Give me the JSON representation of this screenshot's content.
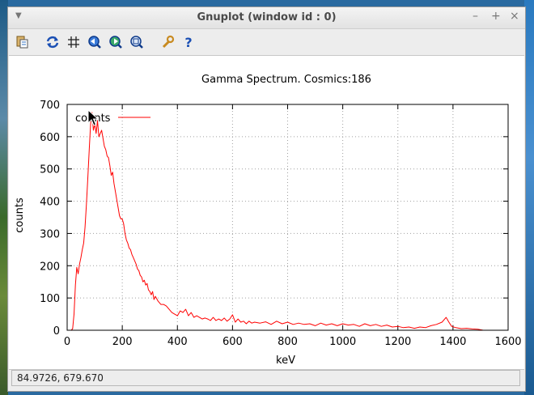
{
  "window": {
    "title": "Gnuplot (window id : 0)"
  },
  "toolbar": {
    "icons": [
      "copy-clipboard-icon",
      "replot-icon",
      "grid-icon",
      "zoom-previous-icon",
      "zoom-next-icon",
      "autoscale-icon",
      "options-icon",
      "help-icon"
    ]
  },
  "status": {
    "coords": "84.9726,  679.670"
  },
  "colors": {
    "series": "#ff0000",
    "grid": "#a0a0a0",
    "accent_blue": "#1a4fb4"
  },
  "chart_data": {
    "type": "line",
    "title": "Gamma Spectrum.  Cosmics:186",
    "xlabel": "keV",
    "ylabel": "counts",
    "xlim": [
      0,
      1600
    ],
    "ylim": [
      0,
      700
    ],
    "xticks": [
      "0",
      "200",
      "400",
      "600",
      "800",
      "1000",
      "1200",
      "1400",
      "1600"
    ],
    "yticks": [
      "0",
      "100",
      "200",
      "300",
      "400",
      "500",
      "600",
      "700"
    ],
    "grid": true,
    "legend_position": "top-left",
    "series": [
      {
        "name": "counts",
        "color": "#ff0000",
        "points": [
          [
            15,
            0
          ],
          [
            20,
            5
          ],
          [
            25,
            50
          ],
          [
            30,
            140
          ],
          [
            35,
            195
          ],
          [
            40,
            175
          ],
          [
            45,
            205
          ],
          [
            50,
            225
          ],
          [
            55,
            250
          ],
          [
            60,
            270
          ],
          [
            65,
            320
          ],
          [
            70,
            390
          ],
          [
            75,
            470
          ],
          [
            80,
            560
          ],
          [
            85,
            640
          ],
          [
            90,
            675
          ],
          [
            95,
            620
          ],
          [
            100,
            640
          ],
          [
            105,
            610
          ],
          [
            110,
            650
          ],
          [
            115,
            600
          ],
          [
            120,
            610
          ],
          [
            125,
            620
          ],
          [
            130,
            595
          ],
          [
            135,
            570
          ],
          [
            140,
            560
          ],
          [
            145,
            540
          ],
          [
            150,
            535
          ],
          [
            155,
            510
          ],
          [
            160,
            480
          ],
          [
            165,
            490
          ],
          [
            170,
            455
          ],
          [
            175,
            430
          ],
          [
            180,
            405
          ],
          [
            185,
            380
          ],
          [
            190,
            355
          ],
          [
            195,
            345
          ],
          [
            200,
            345
          ],
          [
            205,
            330
          ],
          [
            210,
            300
          ],
          [
            215,
            280
          ],
          [
            220,
            270
          ],
          [
            225,
            255
          ],
          [
            230,
            250
          ],
          [
            235,
            235
          ],
          [
            240,
            225
          ],
          [
            245,
            215
          ],
          [
            250,
            205
          ],
          [
            255,
            190
          ],
          [
            260,
            185
          ],
          [
            265,
            170
          ],
          [
            270,
            165
          ],
          [
            275,
            150
          ],
          [
            280,
            155
          ],
          [
            285,
            140
          ],
          [
            290,
            145
          ],
          [
            295,
            125
          ],
          [
            300,
            120
          ],
          [
            305,
            110
          ],
          [
            310,
            120
          ],
          [
            315,
            95
          ],
          [
            320,
            105
          ],
          [
            330,
            90
          ],
          [
            340,
            80
          ],
          [
            350,
            80
          ],
          [
            360,
            75
          ],
          [
            370,
            65
          ],
          [
            380,
            55
          ],
          [
            390,
            50
          ],
          [
            400,
            45
          ],
          [
            410,
            60
          ],
          [
            420,
            55
          ],
          [
            430,
            65
          ],
          [
            440,
            45
          ],
          [
            450,
            55
          ],
          [
            460,
            40
          ],
          [
            470,
            45
          ],
          [
            480,
            40
          ],
          [
            490,
            35
          ],
          [
            500,
            38
          ],
          [
            510,
            35
          ],
          [
            520,
            30
          ],
          [
            530,
            40
          ],
          [
            540,
            30
          ],
          [
            550,
            35
          ],
          [
            560,
            30
          ],
          [
            570,
            38
          ],
          [
            580,
            28
          ],
          [
            590,
            35
          ],
          [
            600,
            48
          ],
          [
            610,
            25
          ],
          [
            620,
            35
          ],
          [
            630,
            25
          ],
          [
            640,
            28
          ],
          [
            650,
            20
          ],
          [
            660,
            28
          ],
          [
            670,
            22
          ],
          [
            680,
            25
          ],
          [
            700,
            22
          ],
          [
            720,
            26
          ],
          [
            740,
            18
          ],
          [
            760,
            28
          ],
          [
            780,
            20
          ],
          [
            800,
            25
          ],
          [
            820,
            18
          ],
          [
            840,
            22
          ],
          [
            860,
            18
          ],
          [
            880,
            20
          ],
          [
            900,
            14
          ],
          [
            920,
            22
          ],
          [
            940,
            16
          ],
          [
            960,
            20
          ],
          [
            980,
            14
          ],
          [
            1000,
            20
          ],
          [
            1020,
            16
          ],
          [
            1040,
            18
          ],
          [
            1060,
            12
          ],
          [
            1080,
            20
          ],
          [
            1100,
            14
          ],
          [
            1120,
            18
          ],
          [
            1140,
            12
          ],
          [
            1160,
            16
          ],
          [
            1180,
            10
          ],
          [
            1200,
            12
          ],
          [
            1220,
            8
          ],
          [
            1240,
            10
          ],
          [
            1260,
            6
          ],
          [
            1280,
            10
          ],
          [
            1300,
            8
          ],
          [
            1320,
            14
          ],
          [
            1340,
            18
          ],
          [
            1360,
            25
          ],
          [
            1375,
            40
          ],
          [
            1385,
            25
          ],
          [
            1395,
            12
          ],
          [
            1410,
            8
          ],
          [
            1430,
            5
          ],
          [
            1450,
            6
          ],
          [
            1470,
            4
          ],
          [
            1490,
            3
          ],
          [
            1510,
            0
          ]
        ]
      }
    ]
  }
}
